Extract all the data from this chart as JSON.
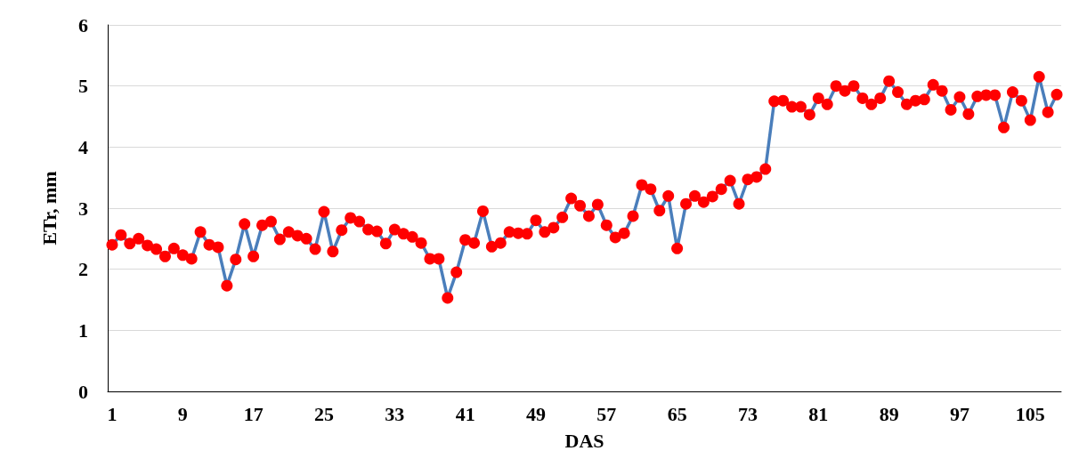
{
  "chart_data": {
    "type": "line",
    "xlabel": "DAS",
    "ylabel": "ETr, mm",
    "categories": [
      "1",
      null,
      null,
      null,
      null,
      null,
      null,
      null,
      "9",
      null,
      null,
      null,
      null,
      null,
      null,
      null,
      "17",
      null,
      null,
      null,
      null,
      null,
      null,
      null,
      "25",
      null,
      null,
      null,
      null,
      null,
      null,
      null,
      "33",
      null,
      null,
      null,
      null,
      null,
      null,
      null,
      "41",
      null,
      null,
      null,
      null,
      null,
      null,
      null,
      "49",
      null,
      null,
      null,
      null,
      null,
      null,
      null,
      "57",
      null,
      null,
      null,
      null,
      null,
      null,
      null,
      "65",
      null,
      null,
      null,
      null,
      null,
      null,
      null,
      "73",
      null,
      null,
      null,
      null,
      null,
      null,
      null,
      "81",
      null,
      null,
      null,
      null,
      null,
      null,
      null,
      "89",
      null,
      null,
      null,
      null,
      null,
      null,
      null,
      "97",
      null,
      null,
      null,
      null,
      null,
      null,
      null,
      "105",
      null,
      null,
      null
    ],
    "series": [
      {
        "color": "#4a7ebb",
        "colors": [
          "#ff0000",
          "#ff0000",
          "#ff0000",
          "#ff0000",
          "#ff0000",
          "#ff0000",
          "#ff0000",
          "#ff0000",
          "#ff0000",
          "#ff0000",
          "#ff0000",
          "#ff0000",
          "#ff0000",
          "#ff0000",
          "#ff0000",
          "#ff0000",
          "#ff0000",
          "#ff0000",
          "#ff0000",
          "#ff0000",
          "#ff0000",
          "#ff0000",
          "#ff0000",
          "#ff0000",
          "#ff0000",
          "#ff0000",
          "#ff0000",
          "#ff0000",
          "#ff0000",
          "#ff0000",
          "#ff0000",
          "#ff0000",
          "#ff0000",
          "#ff0000",
          "#ff0000",
          "#ff0000",
          "#ff0000",
          "#ff0000",
          "#ff0000",
          "#ff0000",
          "#ff0000",
          "#ff0000",
          "#ff0000",
          "#ff0000",
          "#ff0000",
          "#ff0000",
          "#ff0000",
          "#ff0000",
          "#ff0000",
          "#ff0000",
          "#ff0000",
          "#ff0000",
          "#ff0000",
          "#ff0000",
          "#ff0000",
          "#ff0000",
          "#ff0000",
          "#ff0000",
          "#ff0000",
          "#ff0000",
          "#ff0000",
          "#ff0000",
          "#ff0000",
          "#ff0000",
          "#ff0000",
          "#ff0000",
          "#ff0000",
          "#ff0000",
          "#ff0000",
          "#ff0000",
          "#ff0000",
          "#ff0000",
          "#ff0000",
          "#ff0000",
          "#ff0000",
          "#ff0000",
          "#ff0000",
          "#ff0000",
          "#ff0000",
          "#ff0000",
          "#ff0000",
          "#ff0000",
          "#ff0000",
          "#ff0000",
          "#ff0000",
          "#ff0000",
          "#ff0000",
          "#ff0000",
          "#ff0000",
          "#ff0000",
          "#ff0000",
          "#ff0000",
          "#ff0000",
          "#ff0000",
          "#ff0000",
          "#ff0000",
          "#ff0000",
          "#ff0000",
          "#ff0000",
          "#ff0000",
          "#ff0000",
          "#ff0000",
          "#ff0000",
          "#ff0000",
          "#ff0000",
          "#ff0000",
          "#ff0000",
          "#ff0000"
        ],
        "values": [
          2.4,
          2.56,
          2.42,
          2.5,
          2.39,
          2.33,
          2.21,
          2.34,
          2.23,
          2.17,
          2.61,
          2.4,
          2.36,
          1.73,
          2.16,
          2.74,
          2.21,
          2.72,
          2.78,
          2.49,
          2.61,
          2.55,
          2.5,
          2.33,
          2.94,
          2.29,
          2.64,
          2.84,
          2.78,
          2.65,
          2.62,
          2.42,
          2.65,
          2.58,
          2.53,
          2.43,
          2.17,
          2.17,
          1.53,
          1.95,
          2.48,
          2.43,
          2.95,
          2.37,
          2.43,
          2.61,
          2.59,
          2.58,
          2.8,
          2.61,
          2.68,
          2.85,
          3.16,
          3.04,
          2.87,
          3.06,
          2.72,
          2.52,
          2.59,
          2.87,
          3.38,
          3.31,
          2.96,
          3.2,
          2.34,
          3.07,
          3.2,
          3.1,
          3.19,
          3.31,
          3.45,
          3.07,
          3.47,
          3.51,
          3.64,
          4.75,
          4.76,
          4.66,
          4.66,
          4.53,
          4.8,
          4.7,
          5.0,
          4.92,
          5.0,
          4.8,
          4.7,
          4.8,
          5.08,
          4.9,
          4.7,
          4.76,
          4.78,
          5.02,
          4.92,
          4.61,
          4.82,
          4.54,
          4.83,
          4.85,
          4.85,
          4.32,
          4.9,
          4.76,
          4.44,
          5.15,
          4.57,
          4.86
        ]
      }
    ],
    "ylim": [
      0,
      6
    ],
    "yticks": [
      0,
      1,
      2,
      3,
      4,
      5,
      6
    ],
    "grid": "y",
    "marker": "circle",
    "line_style": "solid"
  }
}
